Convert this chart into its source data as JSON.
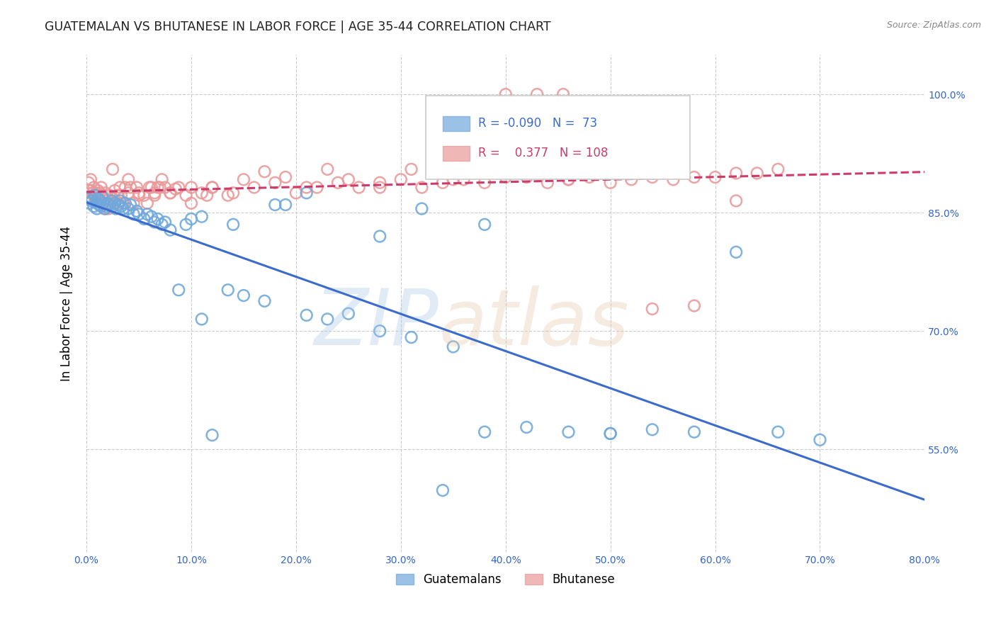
{
  "title": "GUATEMALAN VS BHUTANESE IN LABOR FORCE | AGE 35-44 CORRELATION CHART",
  "source": "Source: ZipAtlas.com",
  "ylabel": "In Labor Force | Age 35-44",
  "xlim": [
    0.0,
    0.8
  ],
  "ylim": [
    0.42,
    1.05
  ],
  "ytick_vals": [
    0.55,
    0.7,
    0.85,
    1.0
  ],
  "ytick_labels": [
    "55.0%",
    "70.0%",
    "85.0%",
    "100.0%"
  ],
  "xtick_vals": [
    0.0,
    0.1,
    0.2,
    0.3,
    0.4,
    0.5,
    0.6,
    0.7,
    0.8
  ],
  "xtick_labels": [
    "0.0%",
    "10.0%",
    "20.0%",
    "30.0%",
    "40.0%",
    "50.0%",
    "60.0%",
    "70.0%",
    "80.0%"
  ],
  "legend_blue_R": "-0.090",
  "legend_blue_N": "73",
  "legend_pink_R": "0.377",
  "legend_pink_N": "108",
  "legend_label_blue": "Guatemalans",
  "legend_label_pink": "Bhutanese",
  "blue_scatter_color": "#6fa8dc",
  "pink_scatter_color": "#ea9999",
  "blue_line_color": "#3b6bcc",
  "pink_line_color": "#cc3b6b",
  "background_color": "#ffffff",
  "blue_x": [
    0.001,
    0.003,
    0.004,
    0.005,
    0.007,
    0.008,
    0.009,
    0.01,
    0.011,
    0.012,
    0.013,
    0.014,
    0.015,
    0.016,
    0.018,
    0.019,
    0.02,
    0.022,
    0.024,
    0.025,
    0.027,
    0.028,
    0.03,
    0.032,
    0.033,
    0.035,
    0.037,
    0.04,
    0.042,
    0.045,
    0.048,
    0.05,
    0.055,
    0.058,
    0.062,
    0.065,
    0.068,
    0.072,
    0.075,
    0.08,
    0.088,
    0.095,
    0.1,
    0.11,
    0.12,
    0.135,
    0.15,
    0.17,
    0.19,
    0.21,
    0.23,
    0.25,
    0.28,
    0.31,
    0.34,
    0.38,
    0.42,
    0.46,
    0.5,
    0.54,
    0.58,
    0.62,
    0.66,
    0.7,
    0.38,
    0.5,
    0.35,
    0.28,
    0.32,
    0.21,
    0.18,
    0.14,
    0.11
  ],
  "blue_y": [
    0.868,
    0.862,
    0.87,
    0.865,
    0.858,
    0.872,
    0.863,
    0.855,
    0.868,
    0.86,
    0.865,
    0.858,
    0.87,
    0.862,
    0.855,
    0.858,
    0.862,
    0.86,
    0.865,
    0.858,
    0.862,
    0.855,
    0.86,
    0.865,
    0.858,
    0.855,
    0.862,
    0.855,
    0.86,
    0.848,
    0.852,
    0.848,
    0.842,
    0.848,
    0.845,
    0.838,
    0.842,
    0.835,
    0.838,
    0.828,
    0.752,
    0.835,
    0.842,
    0.715,
    0.568,
    0.752,
    0.745,
    0.738,
    0.86,
    0.72,
    0.715,
    0.722,
    0.7,
    0.692,
    0.498,
    0.572,
    0.578,
    0.572,
    0.57,
    0.575,
    0.572,
    0.8,
    0.572,
    0.562,
    0.835,
    0.57,
    0.68,
    0.82,
    0.855,
    0.875,
    0.86,
    0.835,
    0.845
  ],
  "pink_x": [
    0.002,
    0.003,
    0.004,
    0.005,
    0.006,
    0.007,
    0.008,
    0.009,
    0.01,
    0.011,
    0.012,
    0.013,
    0.014,
    0.015,
    0.016,
    0.017,
    0.018,
    0.019,
    0.02,
    0.021,
    0.022,
    0.023,
    0.025,
    0.027,
    0.028,
    0.03,
    0.032,
    0.033,
    0.035,
    0.037,
    0.04,
    0.042,
    0.045,
    0.048,
    0.05,
    0.055,
    0.058,
    0.062,
    0.065,
    0.068,
    0.072,
    0.075,
    0.08,
    0.088,
    0.095,
    0.1,
    0.11,
    0.12,
    0.135,
    0.15,
    0.17,
    0.19,
    0.21,
    0.23,
    0.25,
    0.28,
    0.31,
    0.34,
    0.38,
    0.42,
    0.46,
    0.5,
    0.54,
    0.58,
    0.62,
    0.35,
    0.12,
    0.025,
    0.07,
    0.08,
    0.06,
    0.04,
    0.4,
    0.43,
    0.455,
    0.14,
    0.16,
    0.18,
    0.2,
    0.22,
    0.24,
    0.26,
    0.28,
    0.3,
    0.32,
    0.34,
    0.36,
    0.38,
    0.4,
    0.42,
    0.44,
    0.46,
    0.48,
    0.5,
    0.52,
    0.54,
    0.56,
    0.58,
    0.6,
    0.62,
    0.64,
    0.66,
    0.03,
    0.05,
    0.065,
    0.085,
    0.1,
    0.115
  ],
  "pink_y": [
    0.888,
    0.878,
    0.892,
    0.868,
    0.875,
    0.882,
    0.868,
    0.875,
    0.872,
    0.878,
    0.865,
    0.875,
    0.882,
    0.872,
    0.862,
    0.855,
    0.875,
    0.865,
    0.862,
    0.855,
    0.872,
    0.862,
    0.868,
    0.878,
    0.865,
    0.872,
    0.882,
    0.872,
    0.862,
    0.882,
    0.875,
    0.882,
    0.862,
    0.882,
    0.875,
    0.872,
    0.862,
    0.882,
    0.872,
    0.882,
    0.892,
    0.882,
    0.875,
    0.882,
    0.872,
    0.862,
    0.875,
    0.882,
    0.872,
    0.892,
    0.902,
    0.895,
    0.882,
    0.905,
    0.892,
    0.882,
    0.905,
    0.912,
    0.915,
    0.905,
    0.892,
    0.905,
    0.728,
    0.732,
    0.865,
    0.892,
    0.882,
    0.905,
    0.882,
    0.875,
    0.882,
    0.892,
    1.0,
    1.0,
    1.0,
    0.875,
    0.882,
    0.888,
    0.875,
    0.882,
    0.888,
    0.882,
    0.888,
    0.892,
    0.882,
    0.888,
    0.892,
    0.888,
    0.895,
    0.895,
    0.888,
    0.892,
    0.895,
    0.888,
    0.892,
    0.895,
    0.892,
    0.895,
    0.895,
    0.9,
    0.9,
    0.905,
    0.862,
    0.872,
    0.875,
    0.88,
    0.882,
    0.872
  ]
}
